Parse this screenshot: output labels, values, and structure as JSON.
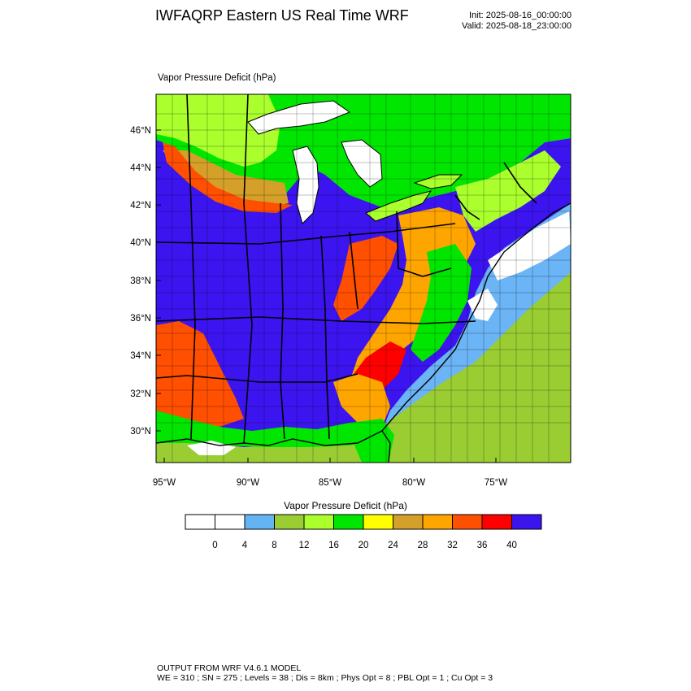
{
  "header": {
    "title": "IWFAQRP Eastern US Real Time WRF",
    "init": "Init: 2025-08-16_00:00:00",
    "valid": "Valid: 2025-08-18_23:00:00"
  },
  "field_label": "Vapor Pressure Deficit   (hPa)",
  "map": {
    "lat_labels": [
      "46°N",
      "44°N",
      "42°N",
      "40°N",
      "38°N",
      "36°N",
      "34°N",
      "32°N",
      "30°N"
    ],
    "lon_labels": [
      "95°W",
      "90°W",
      "85°W",
      "80°W",
      "75°W"
    ],
    "colors": {
      "water": "#6bb4f5",
      "lakes": "#ffffff",
      "borders": "#000000"
    }
  },
  "colorbar": {
    "title": "Vapor Pressure Deficit  (hPa)",
    "tick_labels": [
      "0",
      "4",
      "8",
      "12",
      "16",
      "20",
      "24",
      "28",
      "32",
      "36",
      "40"
    ],
    "colors": [
      "#ffffff",
      "#ffffff",
      "#64b4f5",
      "#9acd32",
      "#aaff2d",
      "#00e600",
      "#ffff00",
      "#d4a02a",
      "#ffa500",
      "#ff4f00",
      "#ff0000",
      "#3c14f0"
    ]
  },
  "footer": {
    "line1": "OUTPUT FROM WRF V4.6.1 MODEL",
    "line2": "WE = 310 ; SN = 275 ; Levels = 38 ; Dis = 8km ; Phys Opt = 8 ; PBL Opt = 1 ; Cu Opt = 3"
  }
}
